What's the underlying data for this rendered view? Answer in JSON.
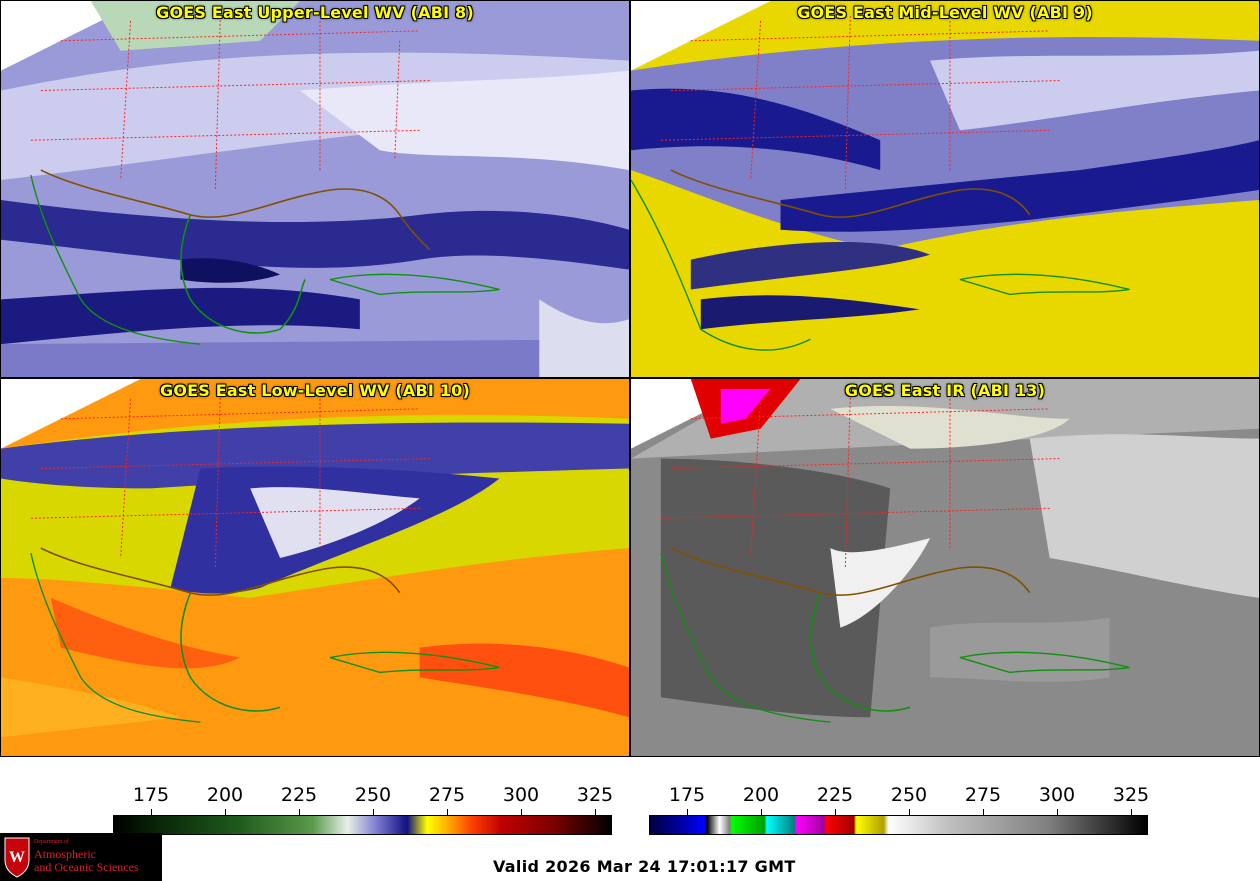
{
  "panels": [
    {
      "title": "GOES East Upper-Level WV (ABI 8)"
    },
    {
      "title": "GOES East Mid-Level WV (ABI 9)"
    },
    {
      "title": "GOES East Low-Level WV (ABI 10)"
    },
    {
      "title": "GOES East IR (ABI 13)"
    }
  ],
  "colorbars": {
    "left": {
      "ticks": [
        "175",
        "200",
        "225",
        "250",
        "275",
        "300",
        "325"
      ]
    },
    "right": {
      "ticks": [
        "175",
        "200",
        "225",
        "250",
        "275",
        "300",
        "325"
      ]
    }
  },
  "valid_time": "Valid 2026 Mar 24 17:01:17 GMT",
  "logo": {
    "line1": "Department of",
    "line2": "Atmospheric",
    "line3": "and Oceanic Sciences",
    "crest_letter": "W"
  },
  "colors": {
    "title_yellow": "#ffff00",
    "border_red": "#ff2020",
    "coast_green": "#109010",
    "coast_brown": "#805000"
  }
}
